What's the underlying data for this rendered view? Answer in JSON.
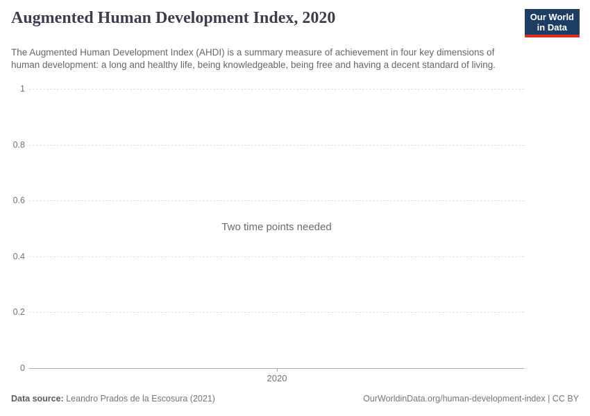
{
  "header": {
    "title": "Augmented Human Development Index, 2020",
    "subtitle": "The Augmented Human Development Index (AHDI) is a summary measure of achievement in four key dimensions of human development: a long and healthy life, being knowledgeable, being free and having a decent standard of living.",
    "logo": {
      "line1": "Our World",
      "line2": "in Data",
      "bg_color": "#1d3d63",
      "stripe_color": "#dc2d20"
    }
  },
  "chart_data": {
    "type": "line",
    "title": "Augmented Human Development Index, 2020",
    "series": [],
    "x": {
      "tick_labels": [
        "2020"
      ]
    },
    "y": {
      "tick_labels": [
        "0",
        "0.2",
        "0.4",
        "0.6",
        "0.8",
        "1"
      ],
      "range": [
        0,
        1
      ]
    },
    "grid": true,
    "empty_message": "Two time points needed",
    "colors": {
      "gridline": "#e0e0e0",
      "axis": "#a7a7a7",
      "tick_text": "#737373"
    }
  },
  "footer": {
    "source_label": "Data source:",
    "source_value": "Leandro Prados de la Escosura (2021)",
    "link_text": "OurWorldinData.org/human-development-index",
    "separator": "|",
    "license_text": "CC BY"
  }
}
